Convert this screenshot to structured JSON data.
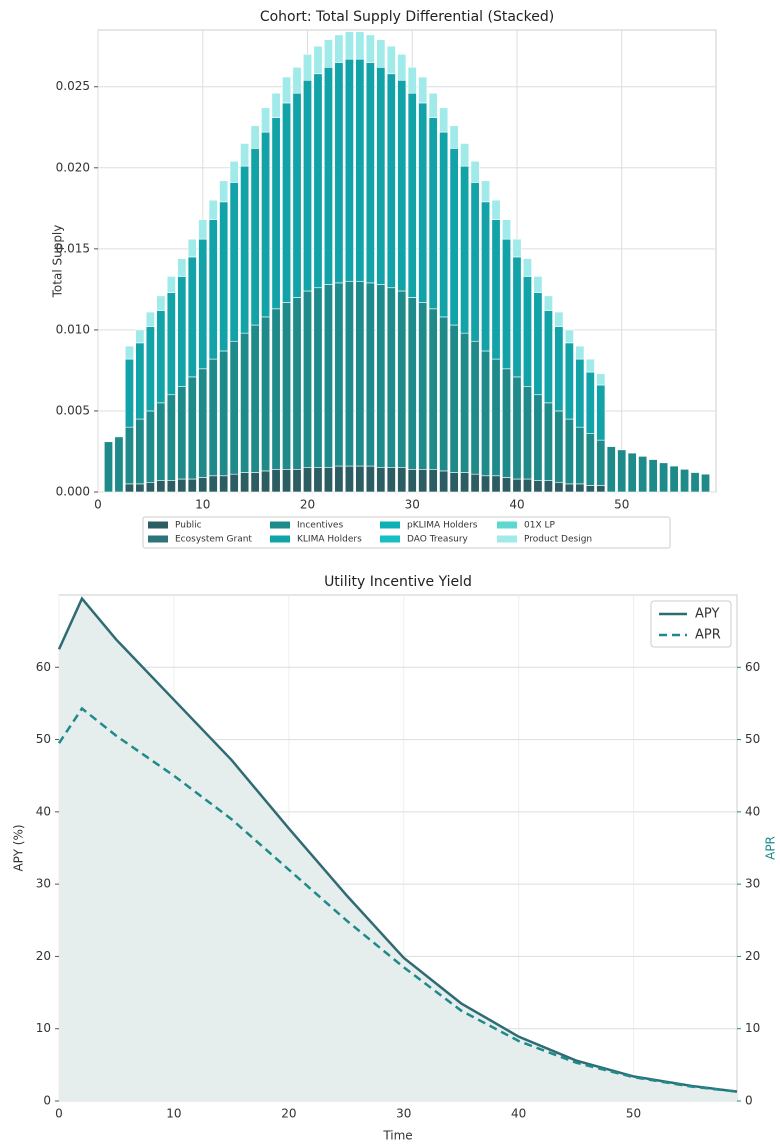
{
  "chart_data": [
    {
      "type": "stacked_bar",
      "title": "Cohort: Total Supply Differential (Stacked)",
      "y_label": "Total Supply",
      "x": [
        1,
        2,
        3,
        4,
        5,
        6,
        7,
        8,
        9,
        10,
        11,
        12,
        13,
        14,
        15,
        16,
        17,
        18,
        19,
        20,
        21,
        22,
        23,
        24,
        25,
        26,
        27,
        28,
        29,
        30,
        31,
        32,
        33,
        34,
        35,
        36,
        37,
        38,
        39,
        40,
        41,
        42,
        43,
        44,
        45,
        46,
        47,
        48,
        49,
        50,
        51,
        52,
        53,
        54,
        55,
        56,
        57,
        58
      ],
      "xlim": [
        0,
        59
      ],
      "xticks": [
        0,
        10,
        20,
        30,
        40,
        50
      ],
      "ylim": [
        0,
        0.0285
      ],
      "yticks": [
        {
          "value": 0,
          "label": "0.000"
        },
        0.005,
        {
          "value": 0.01,
          "label": "0.010"
        },
        0.015,
        {
          "value": 0.02,
          "label": "0.020"
        },
        0.025
      ],
      "grid": true,
      "legend": "below",
      "series": [
        {
          "name": "Public",
          "color": "#2c5d63",
          "values": [
            0,
            0,
            0.0005,
            0.0005,
            0.0006,
            0.0007,
            0.0007,
            0.0008,
            0.0008,
            0.0009,
            0.001,
            0.001,
            0.0011,
            0.0012,
            0.0012,
            0.0013,
            0.0014,
            0.0014,
            0.0014,
            0.0015,
            0.0015,
            0.0015,
            0.0016,
            0.0016,
            0.0016,
            0.0016,
            0.0015,
            0.0015,
            0.0015,
            0.0014,
            0.0014,
            0.0014,
            0.0013,
            0.0012,
            0.0012,
            0.0011,
            0.001,
            0.001,
            0.0009,
            0.0008,
            0.0008,
            0.0007,
            0.0007,
            0.0006,
            0.0005,
            0.0005,
            0.0004,
            0.0004,
            0,
            0,
            0,
            0,
            0,
            0,
            0,
            0,
            0,
            0
          ]
        },
        {
          "name": "Ecosystem Grant",
          "color": "#2e737a",
          "values": [
            0,
            0,
            0,
            0,
            0,
            0,
            0,
            0,
            0,
            0,
            0,
            0,
            0,
            0,
            0,
            0,
            0,
            0,
            0,
            0,
            0,
            0,
            0,
            0,
            0,
            0,
            0,
            0,
            0,
            0,
            0,
            0,
            0,
            0,
            0,
            0,
            0,
            0,
            0,
            0,
            0,
            0,
            0,
            0,
            0,
            0,
            0,
            0,
            0,
            0,
            0,
            0,
            0,
            0,
            0,
            0,
            0,
            0
          ]
        },
        {
          "name": "Incentives",
          "color": "#1f8a8a",
          "values": [
            0.0031,
            0.0034,
            0.0035,
            0.004,
            0.0044,
            0.0048,
            0.0053,
            0.0057,
            0.0063,
            0.0067,
            0.0072,
            0.0077,
            0.0082,
            0.0086,
            0.0091,
            0.0095,
            0.0099,
            0.0103,
            0.0106,
            0.0109,
            0.0111,
            0.0113,
            0.0113,
            0.0114,
            0.0114,
            0.0113,
            0.0113,
            0.0111,
            0.0109,
            0.0106,
            0.0103,
            0.0099,
            0.0095,
            0.0091,
            0.0086,
            0.0082,
            0.0077,
            0.0072,
            0.0067,
            0.0063,
            0.0057,
            0.0053,
            0.0048,
            0.0044,
            0.004,
            0.0035,
            0.0032,
            0.0028,
            0.0028,
            0.0026,
            0.0024,
            0.0022,
            0.002,
            0.0018,
            0.0016,
            0.0014,
            0.0012,
            0.0011
          ]
        },
        {
          "name": "KLIMA Holders",
          "color": "#12a3a8",
          "values": [
            0,
            0,
            0.0042,
            0.0047,
            0.0052,
            0.0057,
            0.0063,
            0.0068,
            0.0074,
            0.008,
            0.0086,
            0.0092,
            0.0098,
            0.0103,
            0.0109,
            0.0114,
            0.0118,
            0.0123,
            0.0126,
            0.013,
            0.0132,
            0.0134,
            0.0136,
            0.0137,
            0.0137,
            0.0136,
            0.0134,
            0.0132,
            0.013,
            0.0126,
            0.0123,
            0.0118,
            0.0114,
            0.0109,
            0.0103,
            0.0098,
            0.0092,
            0.0086,
            0.008,
            0.0074,
            0.0068,
            0.0063,
            0.0057,
            0.0052,
            0.0047,
            0.0042,
            0.0038,
            0.0034,
            0,
            0,
            0,
            0,
            0,
            0,
            0,
            0,
            0,
            0
          ]
        },
        {
          "name": "pKLIMA Holders",
          "color": "#0db0b4",
          "values": [
            0,
            0,
            0,
            0,
            0,
            0,
            0,
            0,
            0,
            0,
            0,
            0,
            0,
            0,
            0,
            0,
            0,
            0,
            0,
            0,
            0,
            0,
            0,
            0,
            0,
            0,
            0,
            0,
            0,
            0,
            0,
            0,
            0,
            0,
            0,
            0,
            0,
            0,
            0,
            0,
            0,
            0,
            0,
            0,
            0,
            0,
            0,
            0,
            0,
            0,
            0,
            0,
            0,
            0,
            0,
            0,
            0,
            0
          ]
        },
        {
          "name": "DAO Treasury",
          "color": "#17bfc4",
          "values": [
            0,
            0,
            0,
            0,
            0,
            0,
            0,
            0,
            0,
            0,
            0,
            0,
            0,
            0,
            0,
            0,
            0,
            0,
            0,
            0,
            0,
            0,
            0,
            0,
            0,
            0,
            0,
            0,
            0,
            0,
            0,
            0,
            0,
            0,
            0,
            0,
            0,
            0,
            0,
            0,
            0,
            0,
            0,
            0,
            0,
            0,
            0,
            0,
            0,
            0,
            0,
            0,
            0,
            0,
            0,
            0,
            0,
            0
          ]
        },
        {
          "name": "01X  LP",
          "color": "#5cd8d0",
          "values": [
            0,
            0,
            0,
            0,
            0,
            0,
            0,
            0,
            0,
            0,
            0,
            0,
            0,
            0,
            0,
            0,
            0,
            0,
            0,
            0,
            0,
            0,
            0,
            0,
            0,
            0,
            0,
            0,
            0,
            0,
            0,
            0,
            0,
            0,
            0,
            0,
            0,
            0,
            0,
            0,
            0,
            0,
            0,
            0,
            0,
            0,
            0,
            0,
            0,
            0,
            0,
            0,
            0,
            0,
            0,
            0,
            0,
            0
          ]
        },
        {
          "name": "Product Design",
          "color": "#a0eaea",
          "values": [
            0,
            0,
            0.0008,
            0.0008,
            0.0009,
            0.0009,
            0.001,
            0.0011,
            0.0011,
            0.0012,
            0.0012,
            0.0013,
            0.0013,
            0.0014,
            0.0014,
            0.0015,
            0.0015,
            0.0016,
            0.0016,
            0.0016,
            0.0017,
            0.0017,
            0.0017,
            0.0017,
            0.0017,
            0.0017,
            0.0017,
            0.0017,
            0.0016,
            0.0016,
            0.0016,
            0.0015,
            0.0015,
            0.0014,
            0.0014,
            0.0013,
            0.0013,
            0.0012,
            0.0012,
            0.0011,
            0.0011,
            0.001,
            0.0009,
            0.0009,
            0.0008,
            0.0008,
            0.0008,
            0.0007,
            0,
            0,
            0,
            0,
            0,
            0,
            0,
            0,
            0,
            0
          ]
        }
      ]
    },
    {
      "type": "line",
      "title": "Utility Incentive Yield",
      "x_label": "Time",
      "y_label": "APY (%)",
      "y2_label": "APR",
      "x": [
        0,
        2,
        5,
        10,
        15,
        20,
        25,
        30,
        35,
        40,
        45,
        50,
        55,
        59
      ],
      "xlim": [
        0,
        59
      ],
      "xticks": [
        0,
        10,
        20,
        30,
        40,
        50
      ],
      "ylim": [
        0,
        70
      ],
      "yticks": [
        0,
        10,
        20,
        30,
        40,
        50,
        60
      ],
      "y2lim": [
        0,
        70
      ],
      "y2ticks": [
        0,
        10,
        20,
        30,
        40,
        50,
        60
      ],
      "y2color": "#1f8a8a",
      "grid": true,
      "legend": "upper right",
      "series": [
        {
          "name": "APY",
          "color": "#2f6b73",
          "dash": false,
          "fill": "#e6eded",
          "values": [
            62.5,
            69.5,
            63.8,
            55.5,
            47.2,
            37.7,
            28.5,
            19.8,
            13.5,
            8.9,
            5.6,
            3.4,
            2.1,
            1.3
          ]
        },
        {
          "name": "APR",
          "color": "#1f8a8a",
          "dash": true,
          "axis": "y2",
          "values": [
            49.5,
            54.3,
            50.5,
            45,
            39,
            32,
            25,
            18.5,
            12.5,
            8.3,
            5.3,
            3.3,
            2,
            1.3
          ]
        }
      ]
    }
  ]
}
